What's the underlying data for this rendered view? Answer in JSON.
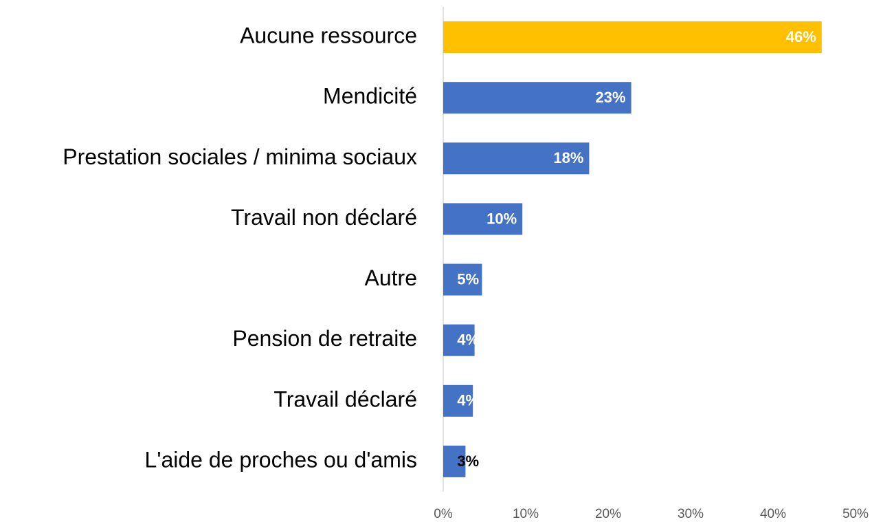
{
  "chart_data": {
    "type": "barh",
    "categories": [
      "Aucune ressource",
      "Mendicité",
      "Prestation sociales / minima sociaux",
      "Travail non déclaré",
      "Autre",
      "Pension de retraite",
      "Travail déclaré",
      "L'aide de proches ou d'amis"
    ],
    "values": [
      45.9,
      22.8,
      17.7,
      9.6,
      4.7,
      3.8,
      3.6,
      2.7
    ],
    "value_labels": [
      "46%",
      "23%",
      "18%",
      "10%",
      "5%",
      "4%",
      "4%",
      "3%"
    ],
    "colors": [
      "#ffc000",
      "#4472c4",
      "#4472c4",
      "#4472c4",
      "#4472c4",
      "#4472c4",
      "#4472c4",
      "#4472c4"
    ],
    "label_colors": [
      "#ffffff",
      "#ffffff",
      "#ffffff",
      "#ffffff",
      "#ffffff",
      "#ffffff",
      "#ffffff",
      "#000000"
    ],
    "xlim": [
      0,
      50
    ],
    "xticks": [
      {
        "value": 0,
        "label": "0%"
      },
      {
        "value": 10,
        "label": "10%"
      },
      {
        "value": 20,
        "label": "20%"
      },
      {
        "value": 30,
        "label": "30%"
      },
      {
        "value": 40,
        "label": "40%"
      },
      {
        "value": 50,
        "label": "50%"
      }
    ],
    "grid": false
  }
}
